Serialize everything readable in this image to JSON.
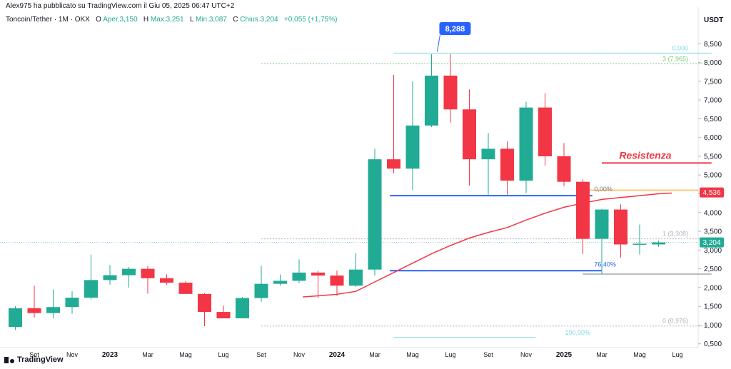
{
  "header": {
    "published": "Alex975 ha pubblicato su TradingView.com il Giu 05, 2025 06:47 UTC+2",
    "symbol": "Toncoin/Tether · 1M · OKX",
    "open_label": "O",
    "open": "Aper.3,150",
    "high_label": "H",
    "high": "Max.3,251",
    "low_label": "L",
    "low": "Min.3,087",
    "close_label": "C",
    "close": "Chius.3,204",
    "change": "+0,055 (+1,75%)"
  },
  "logo": "TradingView",
  "chart_data": {
    "type": "candlestick",
    "title": "Toncoin/Tether · 1M · OKX",
    "ylabel": "USDT",
    "ylim": [
      0.4,
      9.0
    ],
    "y_ticks": [
      "0,500",
      "1,000",
      "1,500",
      "2,000",
      "2,500",
      "3,000",
      "3,500",
      "4,000",
      "4,500",
      "5,000",
      "5,500",
      "6,000",
      "6,500",
      "7,000",
      "7,500",
      "8,000",
      "8,500"
    ],
    "x_ticks": [
      {
        "i": 1,
        "label": "Set"
      },
      {
        "i": 3,
        "label": "Nov"
      },
      {
        "i": 5,
        "label": "2023"
      },
      {
        "i": 7,
        "label": "Mar"
      },
      {
        "i": 9,
        "label": "Mag"
      },
      {
        "i": 11,
        "label": "Lug"
      },
      {
        "i": 13,
        "label": "Set"
      },
      {
        "i": 15,
        "label": "Nov"
      },
      {
        "i": 17,
        "label": "2024"
      },
      {
        "i": 19,
        "label": "Mar"
      },
      {
        "i": 21,
        "label": "Mag"
      },
      {
        "i": 23,
        "label": "Lug"
      },
      {
        "i": 25,
        "label": "Set"
      },
      {
        "i": 27,
        "label": "Nov"
      },
      {
        "i": 29,
        "label": "2025"
      },
      {
        "i": 31,
        "label": "Mar"
      },
      {
        "i": 33,
        "label": "Mag"
      },
      {
        "i": 35,
        "label": "Lug"
      }
    ],
    "candles": [
      {
        "o": 0.95,
        "h": 1.5,
        "l": 0.87,
        "c": 1.45
      },
      {
        "o": 1.45,
        "h": 2.05,
        "l": 1.2,
        "c": 1.32
      },
      {
        "o": 1.32,
        "h": 1.95,
        "l": 1.18,
        "c": 1.48
      },
      {
        "o": 1.48,
        "h": 1.9,
        "l": 1.3,
        "c": 1.73
      },
      {
        "o": 1.73,
        "h": 2.88,
        "l": 1.68,
        "c": 2.2
      },
      {
        "o": 2.2,
        "h": 2.6,
        "l": 2.08,
        "c": 2.33
      },
      {
        "o": 2.33,
        "h": 2.55,
        "l": 2.0,
        "c": 2.5
      },
      {
        "o": 2.5,
        "h": 2.58,
        "l": 1.84,
        "c": 2.25
      },
      {
        "o": 2.25,
        "h": 2.35,
        "l": 2.08,
        "c": 2.13
      },
      {
        "o": 2.13,
        "h": 2.17,
        "l": 1.83,
        "c": 1.83
      },
      {
        "o": 1.83,
        "h": 1.85,
        "l": 0.97,
        "c": 1.35
      },
      {
        "o": 1.35,
        "h": 1.52,
        "l": 1.18,
        "c": 1.18
      },
      {
        "o": 1.18,
        "h": 1.75,
        "l": 1.18,
        "c": 1.72
      },
      {
        "o": 1.72,
        "h": 2.58,
        "l": 1.62,
        "c": 2.1
      },
      {
        "o": 2.1,
        "h": 2.35,
        "l": 2.05,
        "c": 2.18
      },
      {
        "o": 2.18,
        "h": 2.75,
        "l": 2.12,
        "c": 2.4
      },
      {
        "o": 2.4,
        "h": 2.45,
        "l": 1.72,
        "c": 2.32
      },
      {
        "o": 2.32,
        "h": 2.45,
        "l": 1.78,
        "c": 2.05
      },
      {
        "o": 2.05,
        "h": 2.92,
        "l": 2.02,
        "c": 2.48
      },
      {
        "o": 2.48,
        "h": 5.7,
        "l": 2.32,
        "c": 5.42
      },
      {
        "o": 5.42,
        "h": 7.67,
        "l": 5.05,
        "c": 5.17
      },
      {
        "o": 5.17,
        "h": 7.5,
        "l": 4.6,
        "c": 6.32
      },
      {
        "o": 6.32,
        "h": 8.22,
        "l": 6.28,
        "c": 7.65
      },
      {
        "o": 7.65,
        "h": 8.22,
        "l": 6.4,
        "c": 6.75
      },
      {
        "o": 6.75,
        "h": 7.28,
        "l": 4.72,
        "c": 5.42
      },
      {
        "o": 5.42,
        "h": 6.12,
        "l": 4.48,
        "c": 5.7
      },
      {
        "o": 5.7,
        "h": 5.9,
        "l": 4.48,
        "c": 4.85
      },
      {
        "o": 4.85,
        "h": 6.95,
        "l": 4.52,
        "c": 6.8
      },
      {
        "o": 6.8,
        "h": 7.18,
        "l": 5.25,
        "c": 5.5
      },
      {
        "o": 5.5,
        "h": 5.85,
        "l": 4.7,
        "c": 4.82
      },
      {
        "o": 4.82,
        "h": 4.88,
        "l": 2.9,
        "c": 3.3
      },
      {
        "o": 3.3,
        "h": 4.1,
        "l": 2.35,
        "c": 4.08
      },
      {
        "o": 4.08,
        "h": 4.22,
        "l": 2.8,
        "c": 3.15
      },
      {
        "o": 3.15,
        "h": 3.68,
        "l": 2.88,
        "c": 3.17
      },
      {
        "o": 3.15,
        "h": 3.251,
        "l": 3.087,
        "c": 3.204
      }
    ],
    "moving_average": [
      {
        "i": 15.2,
        "v": 1.75
      },
      {
        "i": 16,
        "v": 1.78
      },
      {
        "i": 17,
        "v": 1.82
      },
      {
        "i": 18,
        "v": 1.9
      },
      {
        "i": 19,
        "v": 2.15
      },
      {
        "i": 20,
        "v": 2.4
      },
      {
        "i": 21,
        "v": 2.65
      },
      {
        "i": 22,
        "v": 2.9
      },
      {
        "i": 23,
        "v": 3.12
      },
      {
        "i": 24,
        "v": 3.32
      },
      {
        "i": 25,
        "v": 3.47
      },
      {
        "i": 26,
        "v": 3.6
      },
      {
        "i": 27,
        "v": 3.8
      },
      {
        "i": 28,
        "v": 3.98
      },
      {
        "i": 29,
        "v": 4.14
      },
      {
        "i": 30,
        "v": 4.25
      },
      {
        "i": 31,
        "v": 4.35
      },
      {
        "i": 32,
        "v": 4.4
      },
      {
        "i": 33,
        "v": 4.45
      },
      {
        "i": 34,
        "v": 4.5
      },
      {
        "i": 34.7,
        "v": 4.52
      }
    ],
    "fib_upper": {
      "from_i": 20,
      "to_i": 36.8,
      "levels": [
        {
          "v": 8.25,
          "label": "0,000"
        },
        {
          "v": 7.965,
          "label": "3 (7,965)"
        }
      ]
    },
    "fib_lower": {
      "levels": [
        {
          "v": 3.3,
          "label": "1 (3,308)",
          "from_i": 13,
          "to_i": 36.8
        },
        {
          "v": 0.976,
          "label": "0 (0,976)",
          "from_i": 13,
          "to_i": 36.8
        },
        {
          "v": 0.67,
          "label": "100,00%",
          "from_i": 20,
          "to_i": 27.5
        }
      ]
    },
    "fib_percent_labels": [
      {
        "v": 4.62,
        "label": "0,00%"
      },
      {
        "v": 2.62,
        "label": "76,40%"
      }
    ],
    "support_lines": [
      {
        "v": 4.45,
        "from_i": 19.8,
        "to_i": 30.5
      },
      {
        "v": 2.45,
        "from_i": 19.8,
        "to_i": 31.0
      }
    ],
    "resistance": {
      "v": 5.32,
      "label": "Resistenza",
      "from_i": 31.0,
      "to_i": 36.8
    },
    "high_marker": {
      "v": 8.288,
      "label": "8,288",
      "i": 22.3
    },
    "current_price": {
      "v": 3.204,
      "label": "3,204"
    },
    "level_price": {
      "v": 4.536,
      "label": "4,536",
      "line_v": 4.6
    },
    "gray_line": {
      "v": 2.36,
      "from_i": 30.0,
      "to_i": 36.8
    },
    "colors": {
      "up": "#22ab94",
      "down": "#f23645",
      "ma": "#f23645",
      "fib_upper": "#7fd6ea",
      "fib_lower": "#b2b5be",
      "fib_label": "#7fc97f",
      "support": "#2962ff",
      "resistance": "#f23645",
      "orange": "#ff9800",
      "marker": "#2962ff"
    }
  }
}
